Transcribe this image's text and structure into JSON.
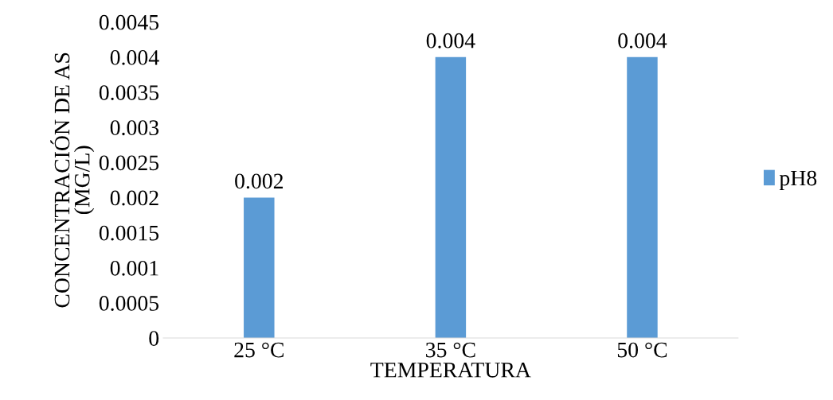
{
  "chart_data": {
    "type": "bar",
    "xlabel": "TEMPERATURA",
    "ylabel": "CONCENTRACIÓN DE AS\n(MG/L)",
    "categories": [
      "25 °C",
      "35 °C",
      "50 °C"
    ],
    "series": [
      {
        "name": "pH8",
        "color": "#5b9bd5",
        "values": [
          0.002,
          0.004,
          0.004
        ]
      }
    ],
    "ylim": [
      0,
      0.0045
    ],
    "yticks": [
      0,
      0.0005,
      0.001,
      0.0015,
      0.002,
      0.0025,
      0.003,
      0.0035,
      0.004,
      0.0045
    ],
    "data_labels": true,
    "legend": "right",
    "grid": false
  }
}
